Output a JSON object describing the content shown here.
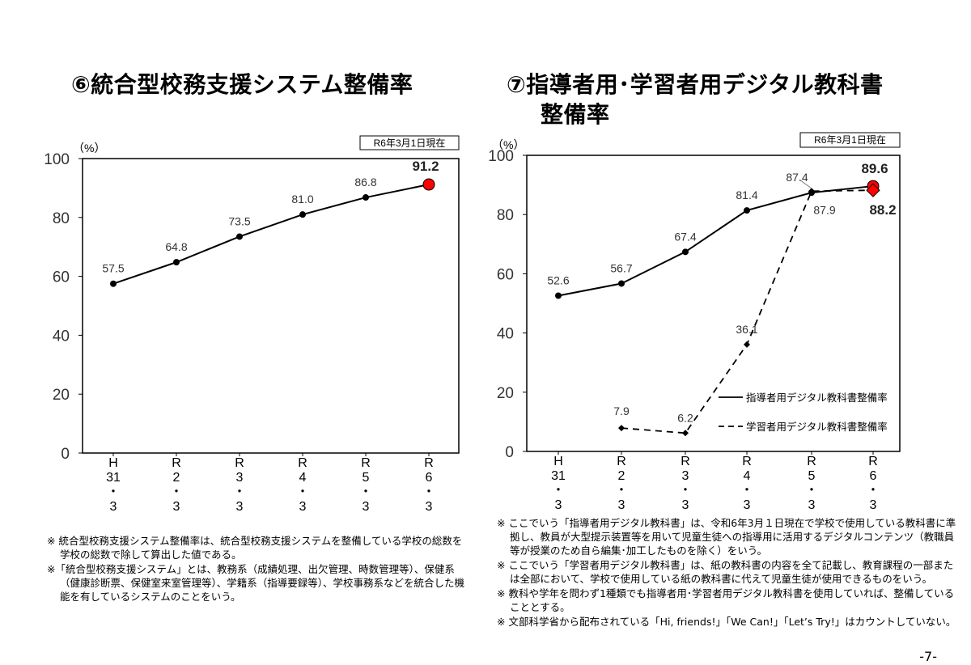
{
  "page_number": "-7-",
  "chart_data": [
    {
      "type": "line",
      "title": "⑥統合型校務支援システム整備率",
      "unit_label": "（%）",
      "date_note": "R6年3月1日現在",
      "ylim": [
        0,
        100
      ],
      "yticks": [
        "0",
        "20",
        "40",
        "60",
        "80",
        "100"
      ],
      "categories": [
        [
          "H",
          "31",
          "・",
          "3"
        ],
        [
          "R",
          "2",
          "・",
          "3"
        ],
        [
          "R",
          "3",
          "・",
          "3"
        ],
        [
          "R",
          "4",
          "・",
          "3"
        ],
        [
          "R",
          "5",
          "・",
          "3"
        ],
        [
          "R",
          "6",
          "・",
          "3"
        ]
      ],
      "grid": false,
      "series": [
        {
          "values": [
            57.5,
            64.8,
            73.5,
            81.0,
            86.8,
            91.2
          ],
          "labels": [
            "57.5",
            "64.8",
            "73.5",
            "81.0",
            "86.8",
            "91.2"
          ],
          "line": "solid",
          "marker": "circle",
          "highlight_last_color": "#ff0000"
        }
      ],
      "notes": [
        "※ 統合型校務支援システム整備率は、統合型校務支援システムを整備している学校の総数を学校の総数で除して算出した値である。",
        "※「統合型校務支援システム」とは、教務系（成績処理、出欠管理、時数管理等）、保健系（健康診断票、保健室来室管理等）、学籍系（指導要録等）、学校事務系などを統合した機能を有しているシステムのことをいう。"
      ]
    },
    {
      "type": "line",
      "title": "⑦指導者用･学習者用デジタル教科書",
      "title_line2": "整備率",
      "unit_label": "（%）",
      "date_note": "R6年3月1日現在",
      "ylim": [
        0,
        100
      ],
      "yticks": [
        "0",
        "20",
        "40",
        "60",
        "80",
        "100"
      ],
      "categories": [
        [
          "H",
          "31",
          "・",
          "3"
        ],
        [
          "R",
          "2",
          "・",
          "3"
        ],
        [
          "R",
          "3",
          "・",
          "3"
        ],
        [
          "R",
          "4",
          "・",
          "3"
        ],
        [
          "R",
          "5",
          "・",
          "3"
        ],
        [
          "R",
          "6",
          "・",
          "3"
        ]
      ],
      "grid": false,
      "legend_placement": "bottom-right",
      "series": [
        {
          "name": "指導者用デジタル教科書整備率",
          "values": [
            52.6,
            56.7,
            67.4,
            81.4,
            87.4,
            89.6
          ],
          "labels": [
            "52.6",
            "56.7",
            "67.4",
            "81.4",
            "87.4",
            "89.6"
          ],
          "line": "solid",
          "marker": "circle",
          "highlight_last_color": "#ff0000"
        },
        {
          "name": "学習者用デジタル教科書整備率",
          "values": [
            null,
            7.9,
            6.2,
            36.1,
            87.9,
            88.2
          ],
          "labels": [
            null,
            "7.9",
            "6.2",
            "36.1",
            "87.9",
            "88.2"
          ],
          "line": "dashed",
          "marker": "diamond",
          "highlight_last_color": "#ff0000"
        }
      ],
      "notes": [
        "※ ここでいう「指導者用デジタル教科書」は、令和6年3月１日現在で学校で使用している教科書に準拠し、教員が大型提示装置等を用いて児童生徒への指導用に活用するデジタルコンテンツ（教職員等が授業のため自ら編集･加工したものを除く）をいう。",
        "※ ここでいう「学習者用デジタル教科書」は、紙の教科書の内容を全て記載し、教育課程の一部または全部において、学校で使用している紙の教科書に代えて児童生徒が使用できるものをいう。",
        "※ 教科や学年を問わず1種類でも指導者用･学習者用デジタル教科書を使用していれば、整備していることとする。",
        "※ 文部科学省から配布されている「Hi, friends!」「We Can!」「Let’s Try!」はカウントしていない。"
      ]
    }
  ]
}
